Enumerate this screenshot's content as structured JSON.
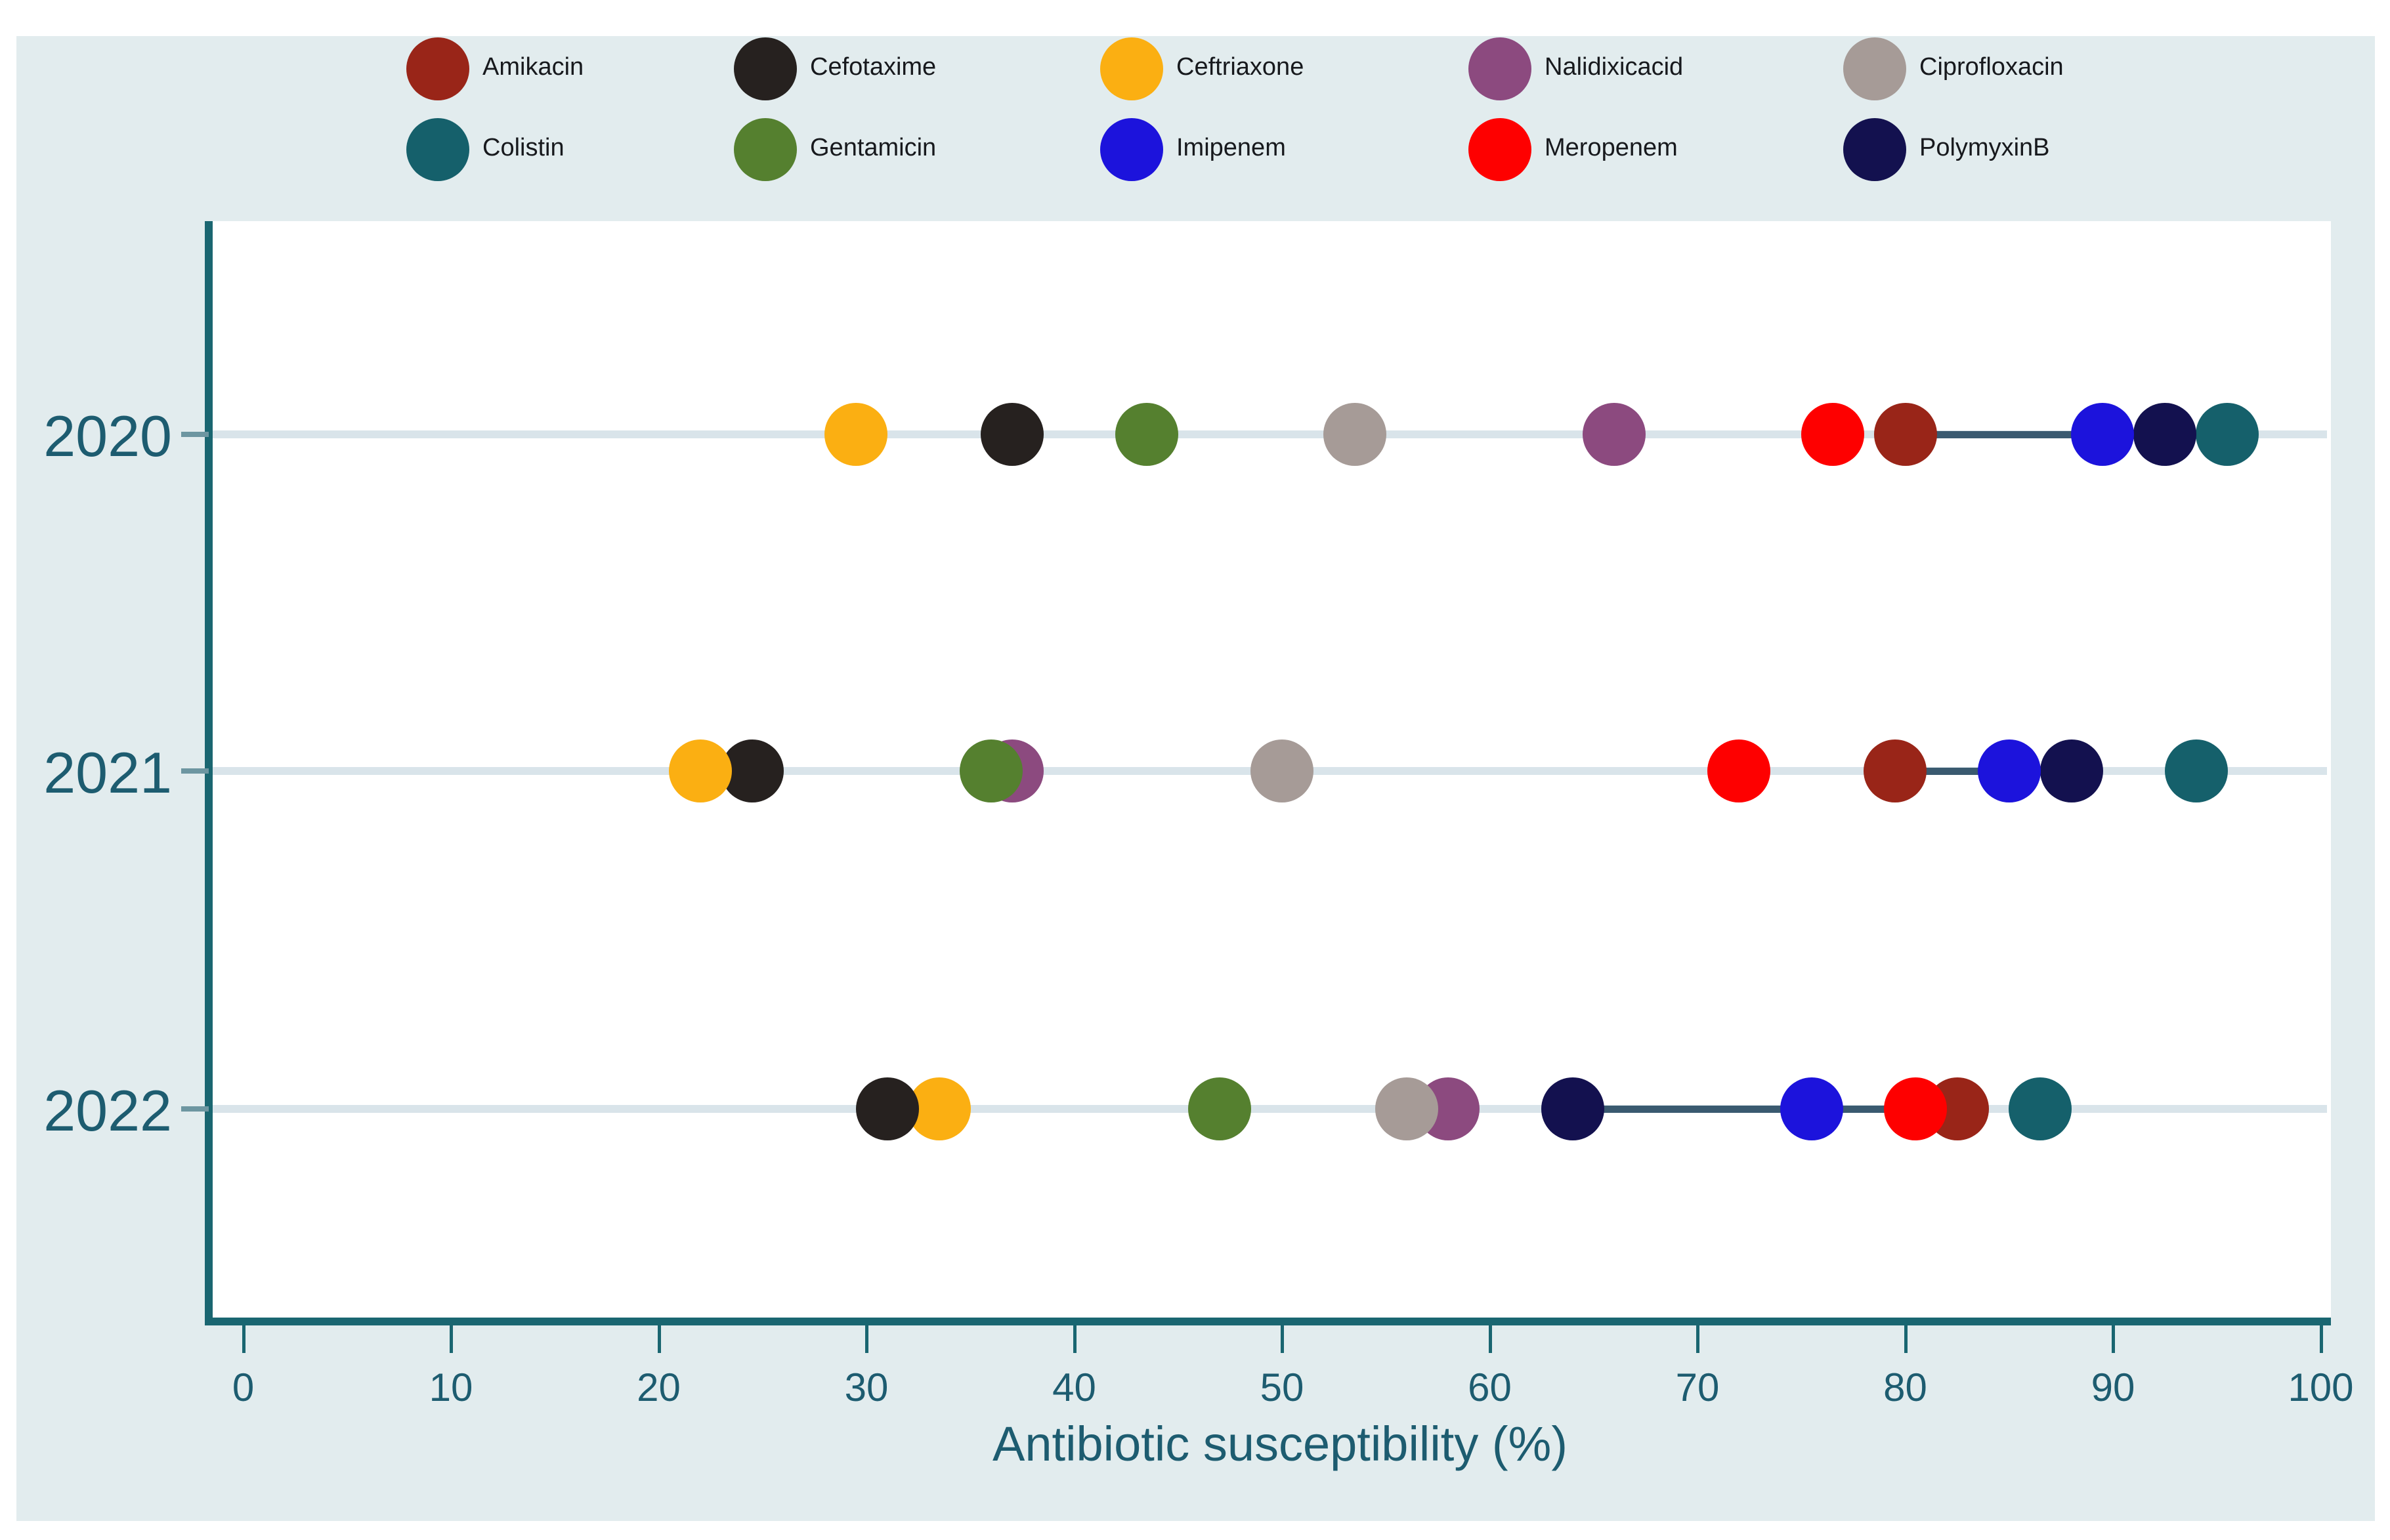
{
  "chart_data": {
    "type": "scatter",
    "subtype": "horizontal-dot-plot",
    "title": "",
    "xlabel": "Antibiotic susceptibility (%)",
    "ylabel": "",
    "xlim": [
      0,
      100
    ],
    "xticks": [
      "0",
      "10",
      "20",
      "30",
      "40",
      "50",
      "60",
      "70",
      "80",
      "90",
      "100"
    ],
    "categories": [
      "2020",
      "2021",
      "2022"
    ],
    "grid": "horizontal category gridlines on",
    "legend_position": "top, 2 rows x 5 columns",
    "series": [
      {
        "name": "Amikacin",
        "color": "#992518",
        "values": [
          80,
          79.5,
          82.5
        ]
      },
      {
        "name": "Cefotaxime",
        "color": "#26211f",
        "values": [
          37,
          24.5,
          31
        ]
      },
      {
        "name": "Ceftriaxone",
        "color": "#fbaf12",
        "values": [
          29.5,
          22,
          33.5
        ]
      },
      {
        "name": "Nalidixicacid",
        "color": "#8c4a7f",
        "values": [
          66,
          37,
          58
        ]
      },
      {
        "name": "Ciprofloxacin",
        "color": "#a69b97",
        "values": [
          53.5,
          50,
          56
        ]
      },
      {
        "name": "Colistin",
        "color": "#15606b",
        "values": [
          95.5,
          94,
          86.5
        ]
      },
      {
        "name": "Gentamicin",
        "color": "#55802f",
        "values": [
          43.5,
          36,
          47
        ]
      },
      {
        "name": "Imipenem",
        "color": "#1c13dc",
        "values": [
          89.5,
          85,
          75.5
        ]
      },
      {
        "name": "Meropenem",
        "color": "#fe0000",
        "values": [
          76.5,
          72,
          80.5
        ]
      },
      {
        "name": "PolymyxinB",
        "color": "#13114f",
        "values": [
          92.5,
          88,
          64
        ]
      }
    ],
    "connector": {
      "between": [
        "Amikacin",
        "PolymyxinB"
      ],
      "color": "#3a5a70",
      "note": "dark line drawn behind markers linking Amikacin and PolymyxinB in each year row"
    }
  },
  "colors": {
    "page_background": "#ffffff",
    "graph_background": "#e2ecee",
    "plot_background": "#ffffff",
    "axis": "#1a6671",
    "axis_text": "#1d5c70",
    "gridline": "#d9e4ea",
    "legend_text": "#17191d"
  }
}
